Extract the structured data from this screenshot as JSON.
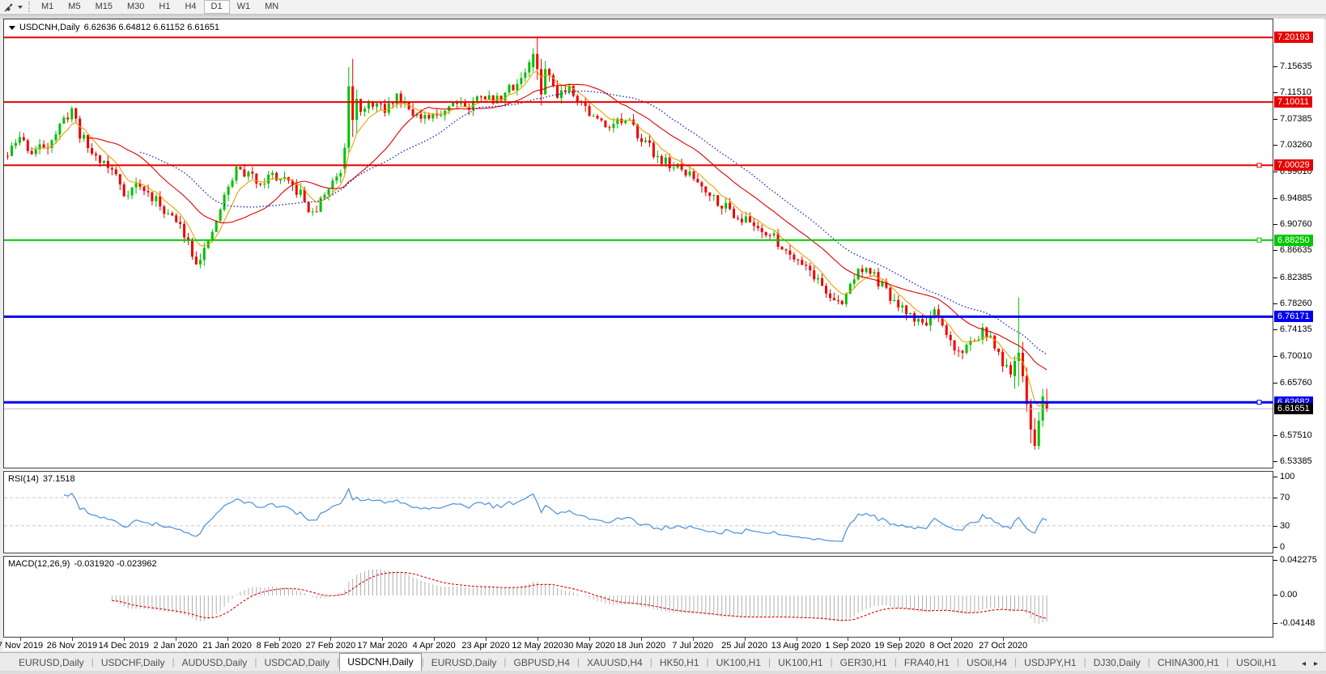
{
  "toolbar": {
    "timeframes": [
      "M1",
      "M5",
      "M15",
      "M30",
      "H1",
      "H4",
      "D1",
      "W1",
      "MN"
    ],
    "selected": "D1",
    "icon": "line-studies"
  },
  "chart_header": {
    "symbol": "USDCNH,Daily",
    "ohlc": "6.62636 6.64812 6.61152 6.61651"
  },
  "rsi_pane": {
    "label": "RSI(14)",
    "value": "37.1518",
    "ticks": [
      100,
      70,
      30,
      0
    ]
  },
  "macd_pane": {
    "label": "MACD(12,26,9)",
    "value": "-0.031920 -0.023962",
    "ticks": [
      {
        "label": "0.042275",
        "y": 5
      },
      {
        "label": "0.00",
        "y": 48
      },
      {
        "label": "-0.04148",
        "y": 83
      }
    ]
  },
  "price_axis": {
    "ticks": [
      "7.15635",
      "7.11510",
      "7.07385",
      "7.03260",
      "6.99010",
      "6.94885",
      "6.90760",
      "6.86635",
      "6.82385",
      "6.78260",
      "6.74135",
      "6.70010",
      "6.65760",
      "6.57510",
      "6.53385"
    ]
  },
  "date_axis": {
    "labels": [
      "7 Nov 2019",
      "26 Nov 2019",
      "14 Dec 2019",
      "2 Jan 2020",
      "21 Jan 2020",
      "8 Feb 2020",
      "27 Feb 2020",
      "17 Mar 2020",
      "4 Apr 2020",
      "23 Apr 2020",
      "12 May 2020",
      "30 May 2020",
      "18 Jun 2020",
      "7 Jul 2020",
      "25 Jul 2020",
      "13 Aug 2020",
      "1 Sep 2020",
      "19 Sep 2020",
      "8 Oct 2020",
      "27 Oct 2020"
    ],
    "first_x": 21,
    "spacing": 63.9
  },
  "tabs": {
    "items": [
      "EURUSD,Daily",
      "USDCHF,Daily",
      "AUDUSD,Daily",
      "USDCAD,Daily",
      "USDCNH,Daily",
      "EURUSD,Daily",
      "GBPUSD,H4",
      "XAUUSD,H4",
      "HK50,H1",
      "UK100,H1",
      "UK100,H1",
      "GER30,H1",
      "FRA40,H1",
      "USOil,H4",
      "USDJPY,H1",
      "DJ30,Daily",
      "CHINA300,H1",
      "USOil,H1"
    ],
    "active_index": 4,
    "scroll_left": "◂",
    "scroll_right": "▸"
  },
  "chart_data": {
    "type": "candlestick",
    "symbol": "USDCNH",
    "timeframe": "Daily",
    "num_candles": 260,
    "x_step": 4.956,
    "seed": 11,
    "volatility": 0.0085,
    "ylim": [
      6.5237,
      7.2303
    ],
    "price_keypoints": [
      [
        0,
        7.015
      ],
      [
        3,
        7.045
      ],
      [
        6,
        7.02
      ],
      [
        10,
        7.035
      ],
      [
        13,
        7.06
      ],
      [
        16,
        7.09
      ],
      [
        18,
        7.05
      ],
      [
        21,
        7.02
      ],
      [
        24,
        7.005
      ],
      [
        27,
        6.985
      ],
      [
        29,
        6.955
      ],
      [
        32,
        6.97
      ],
      [
        36,
        6.95
      ],
      [
        40,
        6.925
      ],
      [
        44,
        6.895
      ],
      [
        47,
        6.85
      ],
      [
        50,
        6.875
      ],
      [
        54,
        6.95
      ],
      [
        57,
        6.995
      ],
      [
        60,
        6.985
      ],
      [
        63,
        6.975
      ],
      [
        66,
        6.985
      ],
      [
        70,
        6.97
      ],
      [
        73,
        6.955
      ],
      [
        76,
        6.92
      ],
      [
        79,
        6.955
      ],
      [
        82,
        6.985
      ],
      [
        84,
        7.0
      ],
      [
        86,
        7.12
      ],
      [
        88,
        7.08
      ],
      [
        91,
        7.1
      ],
      [
        94,
        7.085
      ],
      [
        97,
        7.11
      ],
      [
        100,
        7.095
      ],
      [
        103,
        7.07
      ],
      [
        106,
        7.075
      ],
      [
        109,
        7.09
      ],
      [
        112,
        7.105
      ],
      [
        115,
        7.09
      ],
      [
        118,
        7.115
      ],
      [
        121,
        7.1
      ],
      [
        124,
        7.115
      ],
      [
        127,
        7.13
      ],
      [
        130,
        7.16
      ],
      [
        132,
        7.19
      ],
      [
        134,
        7.15
      ],
      [
        137,
        7.115
      ],
      [
        140,
        7.125
      ],
      [
        143,
        7.1
      ],
      [
        146,
        7.075
      ],
      [
        149,
        7.065
      ],
      [
        152,
        7.07
      ],
      [
        155,
        7.065
      ],
      [
        158,
        7.045
      ],
      [
        161,
        7.02
      ],
      [
        164,
        7.005
      ],
      [
        167,
        6.995
      ],
      [
        170,
        6.985
      ],
      [
        173,
        6.97
      ],
      [
        176,
        6.95
      ],
      [
        179,
        6.935
      ],
      [
        182,
        6.92
      ],
      [
        185,
        6.91
      ],
      [
        188,
        6.9
      ],
      [
        191,
        6.885
      ],
      [
        194,
        6.865
      ],
      [
        197,
        6.855
      ],
      [
        200,
        6.835
      ],
      [
        203,
        6.81
      ],
      [
        206,
        6.785
      ],
      [
        208,
        6.78
      ],
      [
        210,
        6.815
      ],
      [
        213,
        6.84
      ],
      [
        216,
        6.825
      ],
      [
        219,
        6.8
      ],
      [
        222,
        6.775
      ],
      [
        225,
        6.765
      ],
      [
        228,
        6.75
      ],
      [
        231,
        6.765
      ],
      [
        234,
        6.73
      ],
      [
        237,
        6.705
      ],
      [
        240,
        6.72
      ],
      [
        243,
        6.74
      ],
      [
        246,
        6.715
      ],
      [
        248,
        6.69
      ],
      [
        250,
        6.665
      ],
      [
        252,
        6.7
      ],
      [
        254,
        6.65
      ],
      [
        256,
        6.57
      ],
      [
        258,
        6.62
      ],
      [
        259,
        6.6165
      ]
    ],
    "override_candles": {
      "84": [
        6.995,
        7.035,
        6.985,
        7.028
      ],
      "85": [
        7.028,
        7.155,
        7.02,
        7.125
      ],
      "86": [
        7.125,
        7.168,
        7.045,
        7.072
      ],
      "87": [
        7.072,
        7.12,
        7.05,
        7.105
      ],
      "131": [
        7.155,
        7.185,
        7.148,
        7.176
      ],
      "132": [
        7.176,
        7.202,
        7.135,
        7.152
      ],
      "133": [
        7.152,
        7.168,
        7.095,
        7.112
      ],
      "251": [
        6.668,
        6.7,
        6.648,
        6.692
      ],
      "252": [
        6.692,
        6.792,
        6.652,
        6.705
      ],
      "253": [
        6.705,
        6.722,
        6.658,
        6.668
      ],
      "254": [
        6.668,
        6.682,
        6.612,
        6.624
      ],
      "255": [
        6.624,
        6.632,
        6.562,
        6.584
      ],
      "256": [
        6.584,
        6.602,
        6.552,
        6.558
      ],
      "257": [
        6.558,
        6.612,
        6.552,
        6.598
      ],
      "258": [
        6.598,
        6.648,
        6.588,
        6.636
      ],
      "259": [
        6.62636,
        6.64812,
        6.61152,
        6.61651
      ]
    },
    "levels": [
      {
        "price": 7.20193,
        "label": "7.20193",
        "color": "#e80000",
        "width": 2
      },
      {
        "price": 7.10011,
        "label": "7.10011",
        "color": "#e80000",
        "width": 2
      },
      {
        "price": 7.00029,
        "label": "7.00029",
        "color": "#e80000",
        "width": 2,
        "handle": true
      },
      {
        "price": 6.8825,
        "label": "6.88250",
        "color": "#00c800",
        "width": 2,
        "handle": true
      },
      {
        "price": 6.76171,
        "label": "6.76171",
        "color": "#0000ee",
        "width": 3
      },
      {
        "price": 6.62682,
        "label": "6.62682",
        "color": "#0000ee",
        "width": 3,
        "handle": true
      }
    ],
    "current_price": {
      "value": 6.61651,
      "label": "6.61651"
    },
    "moving_averages": [
      {
        "name": "fast",
        "type": "ema",
        "period": 7,
        "color": "#f0a000",
        "style": "solid"
      },
      {
        "name": "mid",
        "type": "sma",
        "period": 21,
        "color": "#e00000",
        "style": "solid"
      },
      {
        "name": "slow",
        "type": "sma",
        "period": 34,
        "color": "#2233bb",
        "style": "dotted"
      }
    ],
    "rsi": {
      "period": 14,
      "levels": [
        70,
        30
      ]
    },
    "macd": {
      "fast": 12,
      "slow": 26,
      "signal": 9
    },
    "colors": {
      "up": "#00c000",
      "down": "#ee0000",
      "grid_dashed": "#c8c8c8",
      "current_line": "#b8b8b8",
      "current_box": "#000000",
      "macd_hist": "#b0b0b0",
      "macd_signal": "#e00000",
      "rsi_line": "#4a8fd8"
    }
  }
}
